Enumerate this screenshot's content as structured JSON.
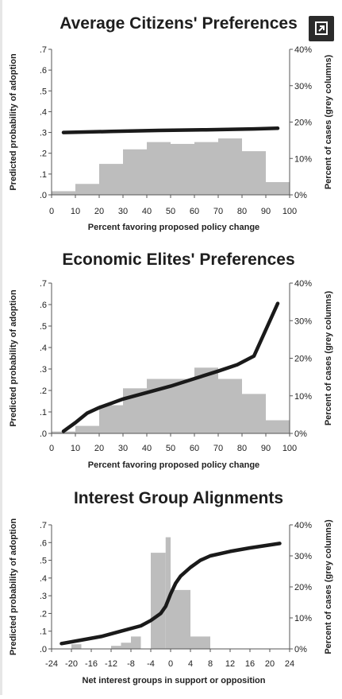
{
  "expand_icon": "expand-icon",
  "colors": {
    "line": "#1a1a1a",
    "bars": "#bdbdbd",
    "axis": "#555555"
  },
  "chart_data": [
    {
      "type": "bar+line",
      "title": "Average Citizens' Preferences",
      "xlabel": "Percent favoring proposed policy change",
      "ylabel": "Predicted probability of adoption",
      "y2label": "Percent of cases (grey columns)",
      "xlim": [
        0,
        100
      ],
      "ylim": [
        0,
        0.7
      ],
      "y2lim": [
        0,
        40
      ],
      "xticks": [
        "0",
        "10",
        "20",
        "30",
        "40",
        "50",
        "60",
        "70",
        "80",
        "90",
        "100"
      ],
      "yticks": [
        ".0",
        ".1",
        ".2",
        ".3",
        ".4",
        ".5",
        ".6",
        ".7"
      ],
      "y2ticks": [
        "0%",
        "10%",
        "20%",
        "30%",
        "40%"
      ],
      "bars": {
        "edges": [
          0,
          10,
          20,
          30,
          40,
          50,
          60,
          70,
          80,
          90,
          100
        ],
        "values": [
          1,
          3,
          8.5,
          12.5,
          14.5,
          14,
          14.5,
          15.5,
          12,
          3.5
        ]
      },
      "line": {
        "x": [
          5,
          25,
          45,
          65,
          85,
          95
        ],
        "y": [
          0.3,
          0.305,
          0.31,
          0.313,
          0.317,
          0.32
        ]
      }
    },
    {
      "type": "bar+line",
      "title": "Economic Elites' Preferences",
      "xlabel": "Percent favoring proposed policy change",
      "ylabel": "Predicted probability of adoption",
      "y2label": "Percent of cases (grey columns)",
      "xlim": [
        0,
        100
      ],
      "ylim": [
        0,
        0.7
      ],
      "y2lim": [
        0,
        40
      ],
      "xticks": [
        "0",
        "10",
        "20",
        "30",
        "40",
        "50",
        "60",
        "70",
        "80",
        "90",
        "100"
      ],
      "yticks": [
        ".0",
        ".1",
        ".2",
        ".3",
        ".4",
        ".5",
        ".6",
        ".7"
      ],
      "y2ticks": [
        "0%",
        "10%",
        "20%",
        "30%",
        "40%"
      ],
      "bars": {
        "edges": [
          0,
          10,
          20,
          30,
          40,
          50,
          60,
          70,
          80,
          90,
          100
        ],
        "values": [
          0.5,
          2,
          7.5,
          12,
          14.5,
          14.5,
          17.5,
          14.5,
          10.5,
          3.5
        ]
      },
      "line": {
        "x": [
          5,
          10,
          15,
          20,
          25,
          30,
          40,
          50,
          60,
          70,
          78,
          85,
          95
        ],
        "y": [
          0.01,
          0.05,
          0.095,
          0.12,
          0.14,
          0.16,
          0.19,
          0.22,
          0.255,
          0.29,
          0.32,
          0.36,
          0.605
        ]
      }
    },
    {
      "type": "bar+line",
      "title": "Interest Group Alignments",
      "xlabel": "Net interest groups in support or opposition",
      "ylabel": "Predicted probability of adoption",
      "y2label": "Percent of cases (grey columns)",
      "xlim": [
        -24,
        24
      ],
      "ylim": [
        0,
        0.7
      ],
      "y2lim": [
        0,
        40
      ],
      "xticks": [
        "-24",
        "-20",
        "-16",
        "-12",
        "-8",
        "-4",
        "0",
        "4",
        "8",
        "12",
        "16",
        "20",
        "24"
      ],
      "yticks": [
        ".0",
        ".1",
        ".2",
        ".3",
        ".4",
        ".5",
        ".6",
        ".7"
      ],
      "y2ticks": [
        "0%",
        "10%",
        "20%",
        "30%",
        "40%"
      ],
      "bars": {
        "edges": [
          -22,
          -20,
          -18,
          -16,
          -14,
          -12,
          -10,
          -8,
          -6,
          -4,
          -2,
          -1,
          0,
          4,
          8,
          12,
          16,
          20,
          22
        ],
        "values": [
          0,
          1.5,
          0,
          0,
          0,
          1,
          2,
          4,
          0,
          31,
          31,
          36,
          19,
          4,
          0,
          0,
          0,
          0
        ]
      },
      "line": {
        "x": [
          -22,
          -18,
          -14,
          -10,
          -6,
          -4,
          -2,
          -1,
          0,
          1,
          2,
          4,
          6,
          8,
          12,
          16,
          22
        ],
        "y": [
          0.03,
          0.05,
          0.07,
          0.1,
          0.13,
          0.16,
          0.2,
          0.24,
          0.31,
          0.37,
          0.41,
          0.46,
          0.5,
          0.525,
          0.55,
          0.57,
          0.595
        ]
      }
    }
  ]
}
